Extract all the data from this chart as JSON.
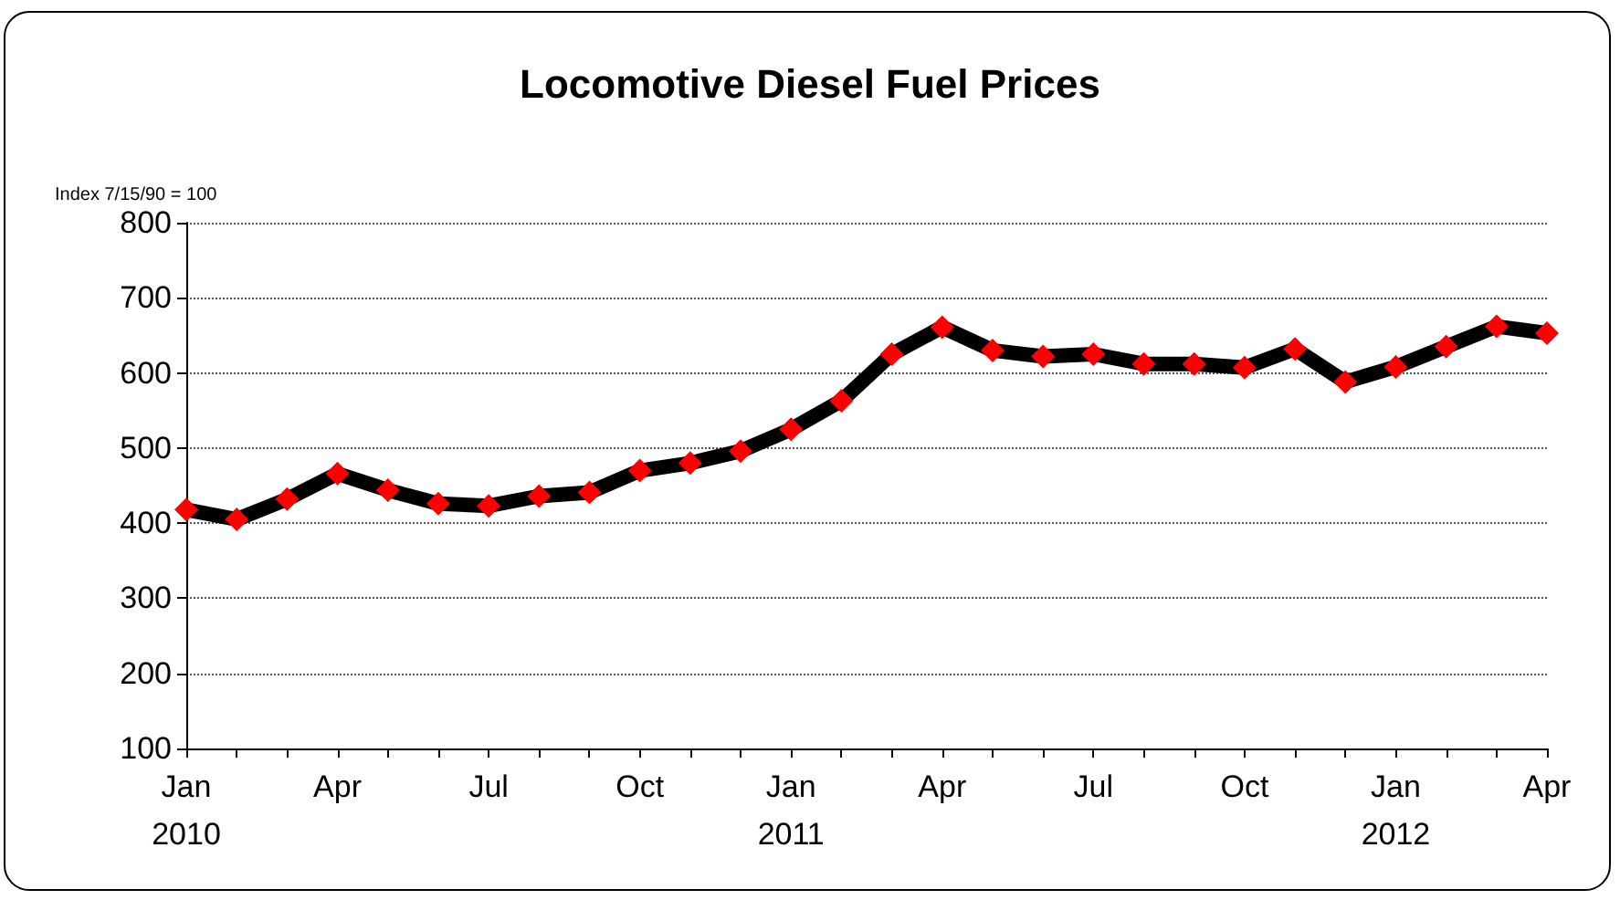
{
  "chart_data": {
    "type": "line",
    "title": "Locomotive Diesel Fuel Prices",
    "ylabel": "Index 7/15/90 = 100",
    "categories": [
      "Jan\n2010",
      null,
      null,
      "Apr",
      null,
      null,
      "Jul",
      null,
      null,
      "Oct",
      null,
      null,
      "Jan\n2011",
      null,
      null,
      "Apr",
      null,
      null,
      "Jul",
      null,
      null,
      "Oct",
      null,
      null,
      "Jan\n2012",
      null,
      null,
      "Apr"
    ],
    "series": [
      {
        "color": "#000000",
        "colors": [
          "#ff0000",
          "#ff0000",
          "#ff0000",
          "#ff0000",
          "#ff0000",
          "#ff0000",
          "#ff0000",
          "#ff0000",
          "#ff0000",
          "#ff0000",
          "#ff0000",
          "#ff0000",
          "#ff0000",
          "#ff0000",
          "#ff0000",
          "#ff0000",
          "#ff0000",
          "#ff0000",
          "#ff0000",
          "#ff0000",
          "#ff0000",
          "#ff0000",
          "#ff0000",
          "#ff0000",
          "#ff0000",
          "#ff0000",
          "#ff0000",
          "#ff0000"
        ],
        "values": [
          418,
          405,
          432,
          466,
          444,
          426,
          423,
          436,
          441,
          470,
          480,
          496,
          525,
          563,
          625,
          661,
          630,
          622,
          625,
          612,
          612,
          607,
          632,
          588,
          608,
          635,
          662,
          653
        ]
      }
    ],
    "ylim": [
      100,
      800
    ],
    "yticks": [
      100,
      200,
      300,
      400,
      500,
      600,
      700,
      800
    ],
    "grid": "y",
    "marker": "diamond",
    "line_style": "solid"
  }
}
